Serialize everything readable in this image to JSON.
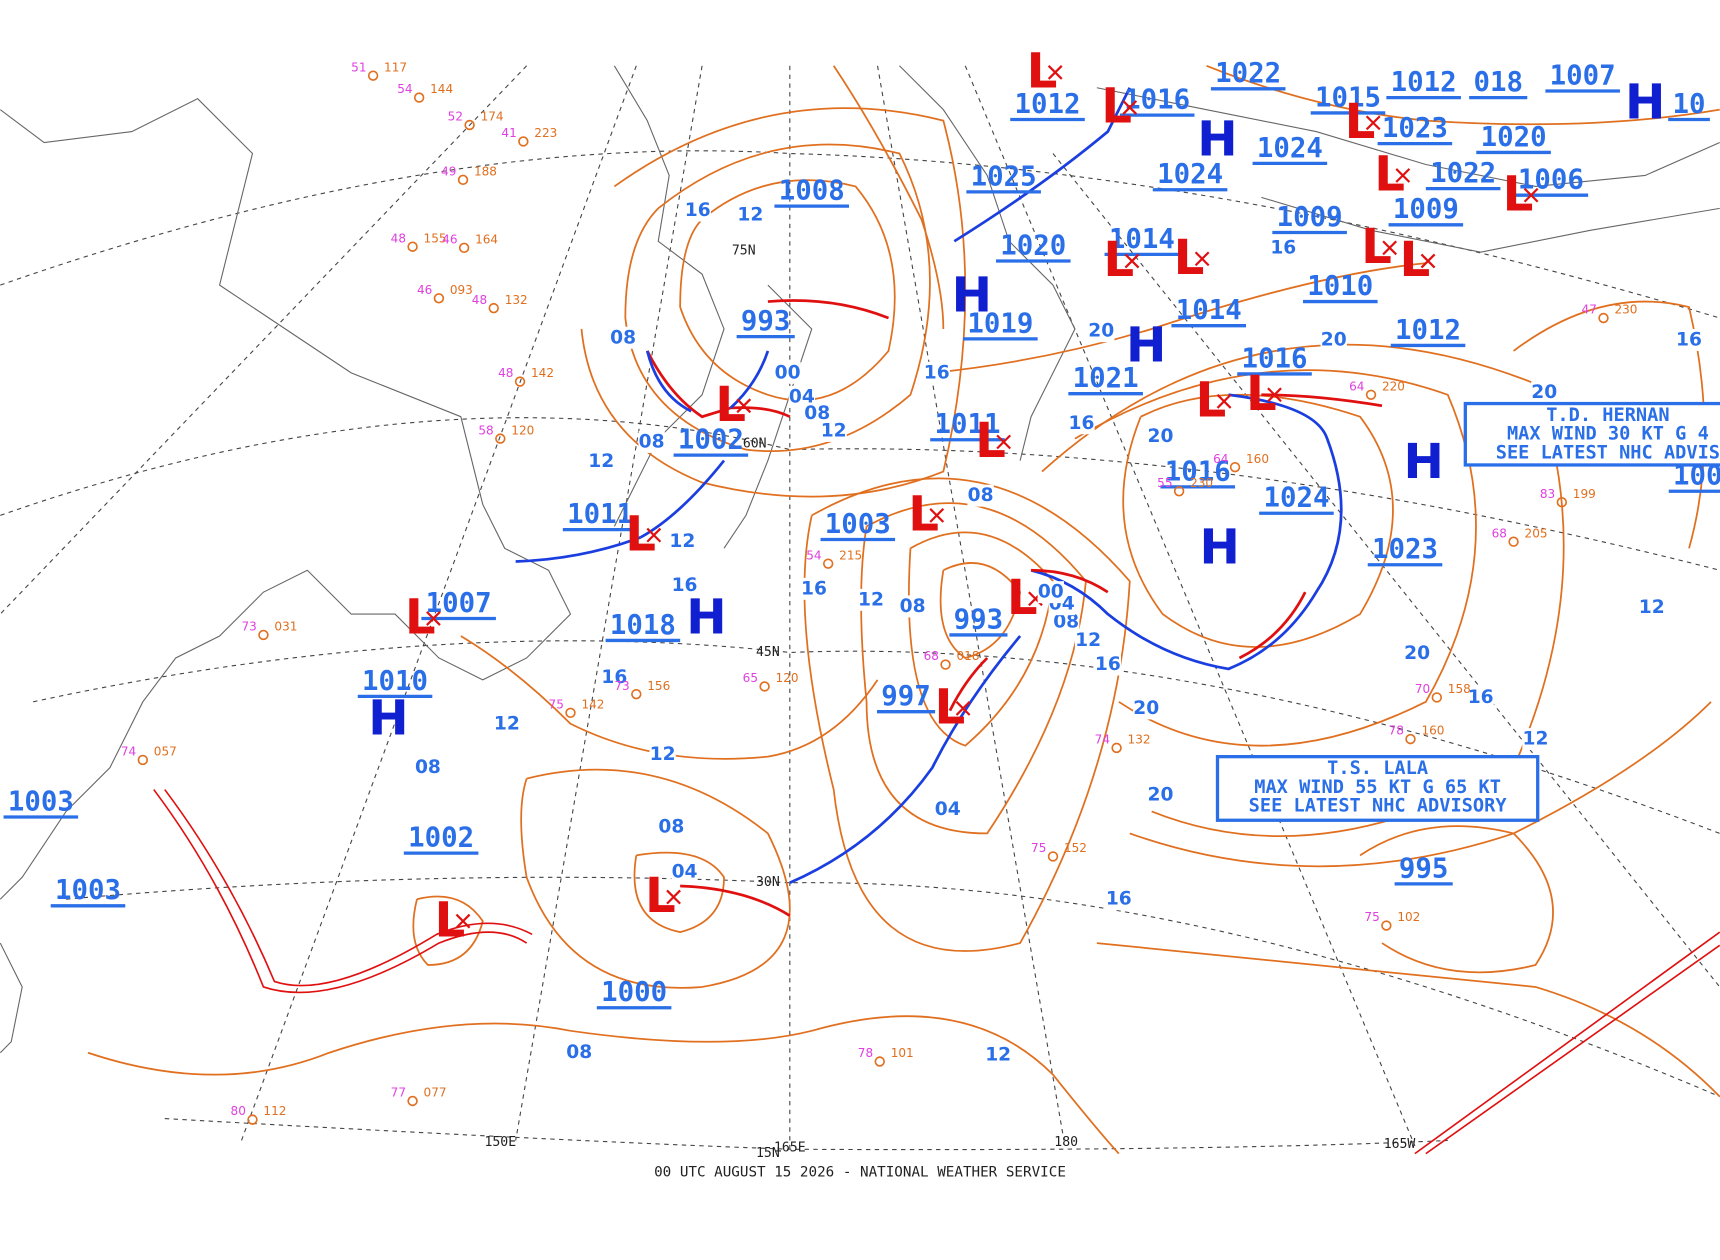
{
  "map": {
    "footer": "00 UTC AUGUST 15 2026 - NATIONAL WEATHER SERVICE",
    "pressure_labels": [
      "1008",
      "993",
      "1002",
      "1011",
      "1007",
      "1018",
      "1010",
      "1003",
      "1002",
      "1003",
      "1000",
      "997",
      "993",
      "1003",
      "1011",
      "1019",
      "1020",
      "1025",
      "1012",
      "1016",
      "1022",
      "1015",
      "1012",
      "018",
      "1007",
      "10",
      "1023",
      "1020",
      "1024",
      "1024",
      "1022",
      "1006",
      "1009",
      "1009",
      "1014",
      "1010",
      "1014",
      "1012",
      "1016",
      "1021",
      "1016",
      "1024",
      "1023",
      "995",
      "100"
    ],
    "highs": [
      "H",
      "H",
      "H",
      "H",
      "H",
      "H",
      "H",
      "H"
    ],
    "lows": [
      "L",
      "L",
      "L",
      "L",
      "L",
      "L",
      "L",
      "L",
      "L",
      "L",
      "L",
      "L",
      "L",
      "L",
      "L",
      "L",
      "L",
      "L",
      "L",
      "L"
    ],
    "isobar_labels": [
      "16",
      "12",
      "08",
      "00",
      "04",
      "08",
      "12",
      "08",
      "12",
      "12",
      "16",
      "16",
      "12",
      "08",
      "16",
      "12",
      "12",
      "08",
      "08",
      "04",
      "08",
      "04",
      "12",
      "16",
      "20",
      "20",
      "16",
      "12",
      "08",
      "04",
      "00",
      "16",
      "16",
      "20",
      "20",
      "20",
      "16",
      "20",
      "16",
      "12",
      "20",
      "16",
      "12",
      "08"
    ],
    "grid_labels": [
      "75N",
      "60N",
      "45N",
      "30N",
      "15N",
      "150E",
      "165E",
      "180",
      "165W"
    ],
    "advisories": [
      {
        "lines": [
          "T.D. HERNAN",
          "MAX WIND 30 KT G 4",
          "SEE LATEST NHC ADVIS"
        ]
      },
      {
        "lines": [
          "T.S. LALA",
          "MAX WIND 55 KT G 65 KT",
          "SEE LATEST NHC ADVISORY"
        ]
      }
    ],
    "stations": [
      {
        "pressure": "117",
        "temp": "51"
      },
      {
        "pressure": "144",
        "temp": "54"
      },
      {
        "pressure": "174",
        "temp": "52"
      },
      {
        "pressure": "223",
        "temp": "41"
      },
      {
        "pressure": "188",
        "temp": "49"
      },
      {
        "pressure": "155",
        "temp": "48"
      },
      {
        "pressure": "164",
        "temp": "46"
      },
      {
        "pressure": "093",
        "temp": "46"
      },
      {
        "pressure": "132",
        "temp": "48"
      },
      {
        "pressure": "142",
        "temp": "48"
      },
      {
        "pressure": "120",
        "temp": "58"
      },
      {
        "pressure": "031",
        "temp": "73"
      },
      {
        "pressure": "057",
        "temp": "74"
      },
      {
        "pressure": "156",
        "temp": "73"
      },
      {
        "pressure": "142",
        "temp": "75"
      },
      {
        "pressure": "120",
        "temp": "65"
      },
      {
        "pressure": "215",
        "temp": "54"
      },
      {
        "pressure": "018",
        "temp": "68"
      },
      {
        "pressure": "132",
        "temp": "74"
      },
      {
        "pressure": "152",
        "temp": "75"
      },
      {
        "pressure": "230",
        "temp": "55"
      },
      {
        "pressure": "160",
        "temp": "64"
      },
      {
        "pressure": "199",
        "temp": "83"
      },
      {
        "pressure": "205",
        "temp": "68"
      },
      {
        "pressure": "158",
        "temp": "70"
      },
      {
        "pressure": "160",
        "temp": "78"
      },
      {
        "pressure": "102",
        "temp": "75"
      },
      {
        "pressure": "101",
        "temp": "78"
      },
      {
        "pressure": "077",
        "temp": "77"
      },
      {
        "pressure": "112",
        "temp": "80"
      },
      {
        "pressure": "220",
        "temp": "64"
      },
      {
        "pressure": "230",
        "temp": "47"
      }
    ]
  }
}
